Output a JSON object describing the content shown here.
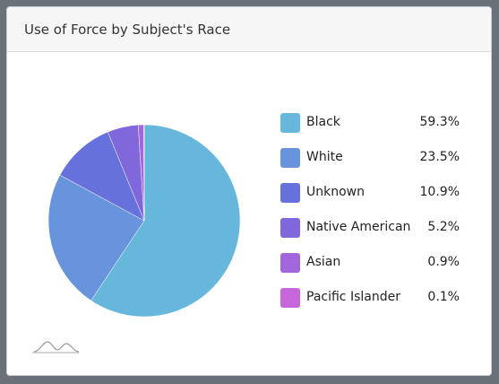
{
  "card": {
    "title": "Use of Force by Subject's Race"
  },
  "chart_data": {
    "type": "pie",
    "title": "Use of Force by Subject's Race",
    "legend_position": "right",
    "start_angle_deg": 0,
    "direction": "clockwise",
    "slices": [
      {
        "label": "Black",
        "value": 59.3,
        "display": "59.3%",
        "color": "#67b7dc"
      },
      {
        "label": "White",
        "value": 23.5,
        "display": "23.5%",
        "color": "#6794dc"
      },
      {
        "label": "Unknown",
        "value": 10.9,
        "display": "10.9%",
        "color": "#6771dc"
      },
      {
        "label": "Native American",
        "value": 5.2,
        "display": "5.2%",
        "color": "#8067dc"
      },
      {
        "label": "Asian",
        "value": 0.9,
        "display": "0.9%",
        "color": "#a367dc"
      },
      {
        "label": "Pacific Islander",
        "value": 0.1,
        "display": "0.1%",
        "color": "#c767dc"
      }
    ]
  },
  "footer": {
    "icon": "sparkline-icon"
  }
}
